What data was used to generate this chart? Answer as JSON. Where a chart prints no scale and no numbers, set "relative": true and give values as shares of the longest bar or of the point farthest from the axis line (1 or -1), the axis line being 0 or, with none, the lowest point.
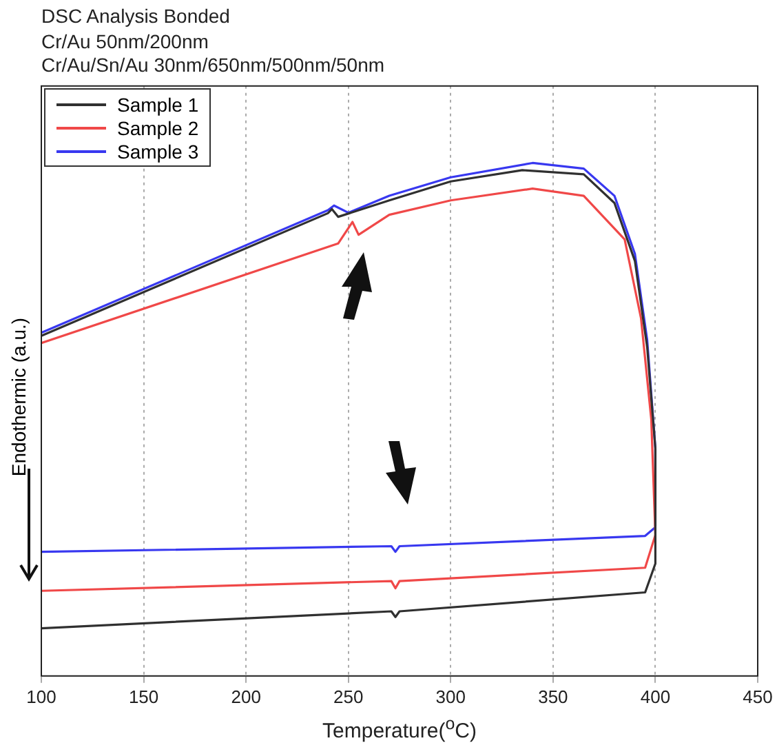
{
  "chart_data": {
    "type": "line",
    "title": "DSC Analysis Bonded",
    "subtitle": "Cr/Au 50nm/200nm\nCr/Au/Sn/Au 30nm/650nm/500nm/50nm",
    "xlabel": "Temperature($^{o}$C)",
    "ylabel": "Endothermic (a.u.)",
    "relative": true,
    "xlim": [
      100,
      450
    ],
    "xticks": [
      100,
      150,
      200,
      250,
      300,
      350,
      400,
      450
    ],
    "grid": "x",
    "legend": "top left",
    "marker": "none",
    "line_style": "solid",
    "series": [
      {
        "name": "Sample 1",
        "color": "#303030",
        "x": [
          100,
          240,
          242,
          245,
          270,
          300,
          335,
          365,
          380,
          390,
          396,
          400,
          400,
          395,
          275,
          273,
          271,
          100
        ],
        "values": [
          0.663,
          0.902,
          0.91,
          0.895,
          0.927,
          0.964,
          0.986,
          0.978,
          0.922,
          0.809,
          0.641,
          0.444,
          0.219,
          0.163,
          0.126,
          0.115,
          0.126,
          0.093
        ]
      },
      {
        "name": "Sample 2",
        "color": "#f04848",
        "x": [
          100,
          245,
          252,
          255,
          270,
          300,
          340,
          365,
          385,
          393,
          398,
          400,
          395,
          275,
          273,
          271,
          100
        ],
        "values": [
          0.649,
          0.843,
          0.885,
          0.86,
          0.899,
          0.927,
          0.95,
          0.936,
          0.851,
          0.697,
          0.5,
          0.275,
          0.211,
          0.185,
          0.171,
          0.185,
          0.166
        ]
      },
      {
        "name": "Sample 3",
        "color": "#3838f0",
        "x": [
          100,
          240,
          243,
          250,
          270,
          300,
          340,
          365,
          380,
          390,
          396,
          400,
          400,
          395,
          275,
          273,
          271,
          100
        ],
        "values": [
          0.669,
          0.908,
          0.917,
          0.903,
          0.936,
          0.972,
          1.0,
          0.989,
          0.936,
          0.823,
          0.655,
          0.444,
          0.29,
          0.273,
          0.253,
          0.242,
          0.253,
          0.242
        ]
      }
    ]
  }
}
